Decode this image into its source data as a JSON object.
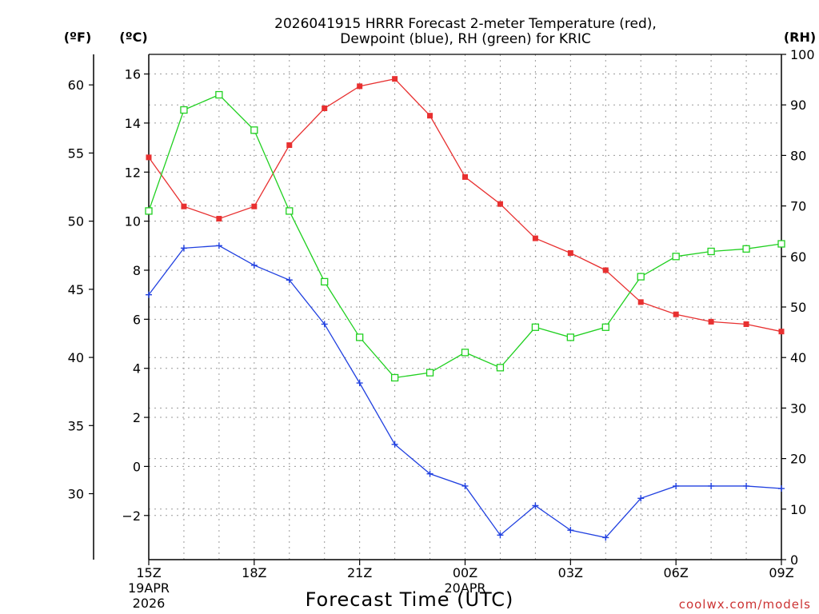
{
  "chart_data": {
    "type": "line",
    "title": [
      "2026041915 HRRR Forecast 2-meter Temperature (red),",
      "Dewpoint (blue), RH (green) for KRIC"
    ],
    "xlabel": "Forecast Time (UTC)",
    "credit": "coolwx.com/models",
    "axis_units": {
      "fahrenheit": "(ºF)",
      "celsius": "(ºC)",
      "rh": "(RH)"
    },
    "x": [
      15,
      16,
      17,
      18,
      19,
      20,
      21,
      22,
      23,
      24,
      25,
      26,
      27,
      28,
      29,
      30,
      31,
      32,
      33
    ],
    "xlim": [
      15,
      33
    ],
    "x_ticks": [
      {
        "x": 15,
        "label": "15Z",
        "date": "19APR",
        "year": "2026"
      },
      {
        "x": 18,
        "label": "18Z"
      },
      {
        "x": 21,
        "label": "21Z"
      },
      {
        "x": 24,
        "label": "00Z",
        "date": "20APR"
      },
      {
        "x": 27,
        "label": "03Z"
      },
      {
        "x": 30,
        "label": "06Z"
      },
      {
        "x": 33,
        "label": "09Z"
      }
    ],
    "celsius_axis": {
      "ylim": [
        -3.8,
        16.8
      ],
      "ticks": [
        -2,
        0,
        2,
        4,
        6,
        8,
        10,
        12,
        14,
        16
      ],
      "tick_labels": [
        "−2",
        "0",
        "2",
        "4",
        "6",
        "8",
        "10",
        "12",
        "14",
        "16"
      ]
    },
    "fahrenheit_axis": {
      "ticks": [
        30,
        35,
        40,
        45,
        50,
        55,
        60
      ],
      "tick_labels": [
        "30",
        "35",
        "40",
        "45",
        "50",
        "55",
        "60"
      ]
    },
    "rh_axis": {
      "ylim": [
        0,
        100
      ],
      "ticks": [
        0,
        10,
        20,
        30,
        40,
        50,
        60,
        70,
        80,
        90,
        100
      ],
      "tick_labels": [
        "0",
        "10",
        "20",
        "30",
        "40",
        "50",
        "60",
        "70",
        "80",
        "90",
        "100"
      ]
    },
    "series": [
      {
        "name": "Temperature",
        "axis": "celsius",
        "color": "#e83030",
        "marker": "filled-square",
        "values": [
          12.6,
          10.6,
          10.1,
          10.6,
          13.1,
          14.6,
          15.5,
          15.8,
          14.3,
          11.8,
          10.7,
          9.3,
          8.7,
          8.0,
          6.7,
          6.2,
          5.9,
          5.8,
          5.5
        ]
      },
      {
        "name": "Dewpoint",
        "axis": "celsius",
        "color": "#2040e0",
        "marker": "plus",
        "values": [
          7.0,
          8.9,
          9.0,
          8.2,
          7.6,
          5.8,
          3.4,
          0.9,
          -0.3,
          -0.8,
          -2.8,
          -1.6,
          -2.6,
          -2.9,
          -1.3,
          -0.8,
          -0.8,
          -0.8,
          -0.9
        ]
      },
      {
        "name": "RH",
        "axis": "rh",
        "color": "#20d020",
        "marker": "open-square",
        "values": [
          69,
          89,
          92,
          85,
          69,
          55,
          44,
          36,
          37,
          41,
          38,
          46,
          44,
          46,
          56,
          60,
          61,
          61.5,
          62.5
        ]
      }
    ]
  }
}
